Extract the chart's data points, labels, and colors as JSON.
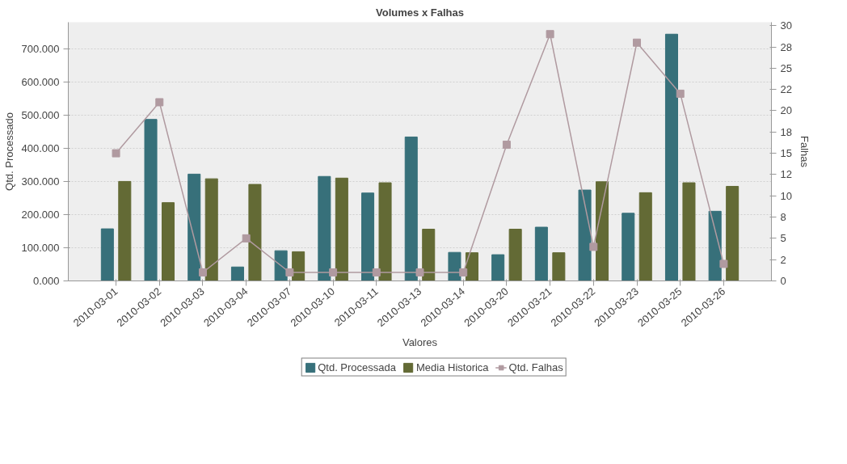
{
  "chart_data": {
    "type": "bar",
    "title": "Volumes x Falhas",
    "xlabel": "Valores",
    "ylabel": "Qtd. Processado",
    "y2label": "Falhas",
    "categories": [
      "2010-03-01",
      "2010-03-02",
      "2010-03-03",
      "2010-03-04",
      "2010-03-07",
      "2010-03-10",
      "2010-03-11",
      "2010-03-13",
      "2010-03-14",
      "2010-03-20",
      "2010-03-21",
      "2010-03-22",
      "2010-03-23",
      "2010-03-25",
      "2010-03-26"
    ],
    "series": [
      {
        "name": "Qtd. Processada",
        "color": "#37707a",
        "values": [
          157,
          487,
          322,
          42,
          91,
          315,
          265,
          434,
          86,
          79,
          162,
          274,
          204,
          744,
          210
        ]
      },
      {
        "name": "Media Historica",
        "color": "#636a35",
        "values": [
          300,
          236,
          308,
          291,
          88,
          310,
          296,
          156,
          85,
          156,
          85,
          299,
          266,
          296,
          285
        ]
      },
      {
        "name": "Qtd. Falhas",
        "color": "#b09aa0",
        "type": "line",
        "axis": "y2",
        "marker": "square",
        "values": [
          15,
          21,
          1,
          5,
          1,
          1,
          1,
          1,
          1,
          16,
          29,
          4,
          28,
          22,
          2
        ]
      }
    ],
    "ylim": [
      0,
      780
    ],
    "yticks": [
      {
        "value": 0,
        "label": "0.000"
      },
      {
        "value": 100,
        "label": "100.000"
      },
      {
        "value": 200,
        "label": "200.000"
      },
      {
        "value": 300,
        "label": "300.000"
      },
      {
        "value": 400,
        "label": "400.000"
      },
      {
        "value": 500,
        "label": "500.000"
      },
      {
        "value": 600,
        "label": "600.000"
      },
      {
        "value": 700,
        "label": "700.000"
      }
    ],
    "y2lim": [
      0,
      30.4
    ],
    "y2ticks": [
      0,
      {
        "value": 2.5,
        "label": "2"
      },
      5,
      {
        "value": 7.5,
        "label": "8"
      },
      10,
      {
        "value": 12.5,
        "label": "12"
      },
      15,
      {
        "value": 17.5,
        "label": "18"
      },
      20,
      {
        "value": 22.5,
        "label": "22"
      },
      25,
      {
        "value": 27.5,
        "label": "28"
      },
      30
    ],
    "grid": "y",
    "legend": "bottom"
  }
}
